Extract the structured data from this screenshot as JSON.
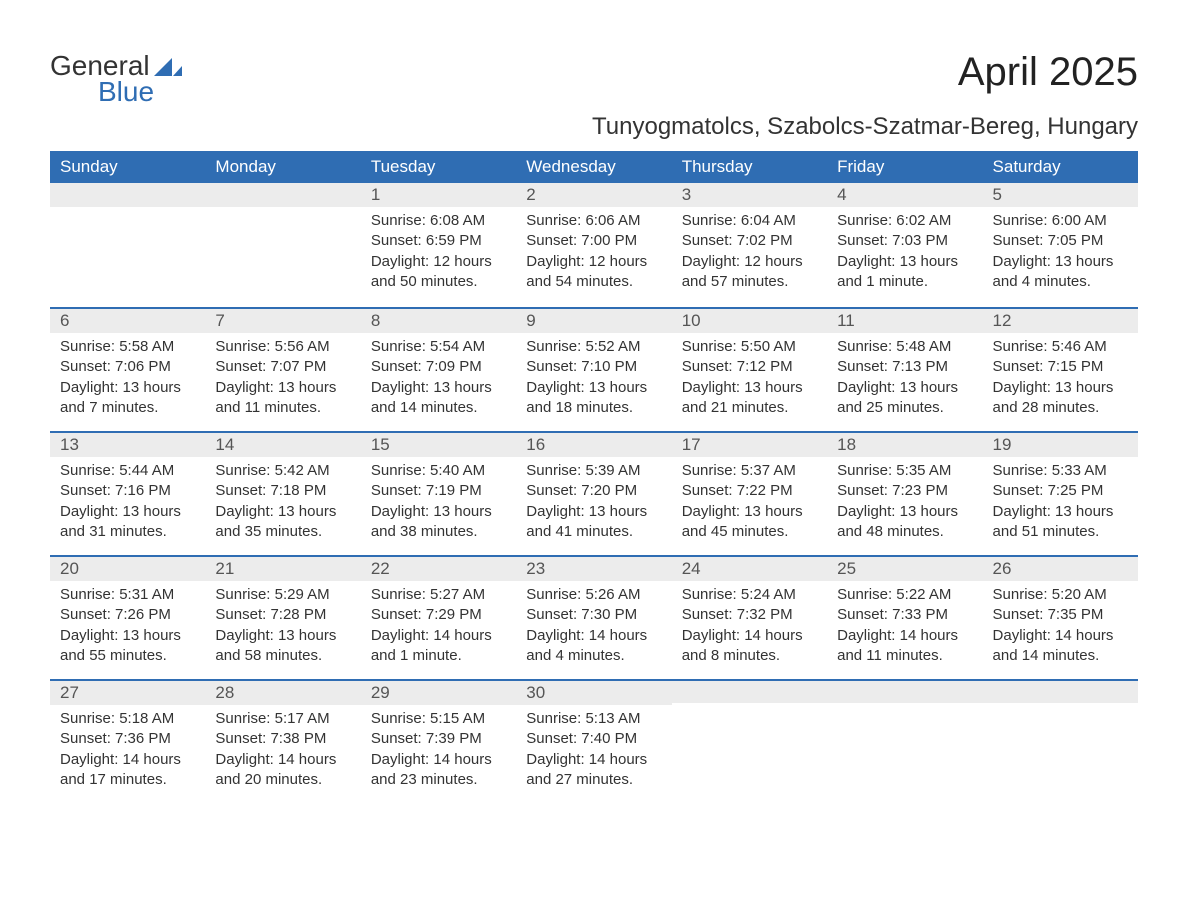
{
  "logo": {
    "text1": "General",
    "text2": "Blue",
    "mark_color": "#2f6db3"
  },
  "title": "April 2025",
  "location": "Tunyogmatolcs, Szabolcs-Szatmar-Bereg, Hungary",
  "colors": {
    "header_bg": "#2f6db3",
    "header_text": "#ffffff",
    "daynum_bg": "#ececec",
    "border_top": "#2f6db3",
    "body_text": "#333333",
    "page_bg": "#ffffff"
  },
  "day_names": [
    "Sunday",
    "Monday",
    "Tuesday",
    "Wednesday",
    "Thursday",
    "Friday",
    "Saturday"
  ],
  "weeks": [
    [
      {
        "n": "",
        "lines": []
      },
      {
        "n": "",
        "lines": []
      },
      {
        "n": "1",
        "lines": [
          "Sunrise: 6:08 AM",
          "Sunset: 6:59 PM",
          "Daylight: 12 hours and 50 minutes."
        ]
      },
      {
        "n": "2",
        "lines": [
          "Sunrise: 6:06 AM",
          "Sunset: 7:00 PM",
          "Daylight: 12 hours and 54 minutes."
        ]
      },
      {
        "n": "3",
        "lines": [
          "Sunrise: 6:04 AM",
          "Sunset: 7:02 PM",
          "Daylight: 12 hours and 57 minutes."
        ]
      },
      {
        "n": "4",
        "lines": [
          "Sunrise: 6:02 AM",
          "Sunset: 7:03 PM",
          "Daylight: 13 hours and 1 minute."
        ]
      },
      {
        "n": "5",
        "lines": [
          "Sunrise: 6:00 AM",
          "Sunset: 7:05 PM",
          "Daylight: 13 hours and 4 minutes."
        ]
      }
    ],
    [
      {
        "n": "6",
        "lines": [
          "Sunrise: 5:58 AM",
          "Sunset: 7:06 PM",
          "Daylight: 13 hours and 7 minutes."
        ]
      },
      {
        "n": "7",
        "lines": [
          "Sunrise: 5:56 AM",
          "Sunset: 7:07 PM",
          "Daylight: 13 hours and 11 minutes."
        ]
      },
      {
        "n": "8",
        "lines": [
          "Sunrise: 5:54 AM",
          "Sunset: 7:09 PM",
          "Daylight: 13 hours and 14 minutes."
        ]
      },
      {
        "n": "9",
        "lines": [
          "Sunrise: 5:52 AM",
          "Sunset: 7:10 PM",
          "Daylight: 13 hours and 18 minutes."
        ]
      },
      {
        "n": "10",
        "lines": [
          "Sunrise: 5:50 AM",
          "Sunset: 7:12 PM",
          "Daylight: 13 hours and 21 minutes."
        ]
      },
      {
        "n": "11",
        "lines": [
          "Sunrise: 5:48 AM",
          "Sunset: 7:13 PM",
          "Daylight: 13 hours and 25 minutes."
        ]
      },
      {
        "n": "12",
        "lines": [
          "Sunrise: 5:46 AM",
          "Sunset: 7:15 PM",
          "Daylight: 13 hours and 28 minutes."
        ]
      }
    ],
    [
      {
        "n": "13",
        "lines": [
          "Sunrise: 5:44 AM",
          "Sunset: 7:16 PM",
          "Daylight: 13 hours and 31 minutes."
        ]
      },
      {
        "n": "14",
        "lines": [
          "Sunrise: 5:42 AM",
          "Sunset: 7:18 PM",
          "Daylight: 13 hours and 35 minutes."
        ]
      },
      {
        "n": "15",
        "lines": [
          "Sunrise: 5:40 AM",
          "Sunset: 7:19 PM",
          "Daylight: 13 hours and 38 minutes."
        ]
      },
      {
        "n": "16",
        "lines": [
          "Sunrise: 5:39 AM",
          "Sunset: 7:20 PM",
          "Daylight: 13 hours and 41 minutes."
        ]
      },
      {
        "n": "17",
        "lines": [
          "Sunrise: 5:37 AM",
          "Sunset: 7:22 PM",
          "Daylight: 13 hours and 45 minutes."
        ]
      },
      {
        "n": "18",
        "lines": [
          "Sunrise: 5:35 AM",
          "Sunset: 7:23 PM",
          "Daylight: 13 hours and 48 minutes."
        ]
      },
      {
        "n": "19",
        "lines": [
          "Sunrise: 5:33 AM",
          "Sunset: 7:25 PM",
          "Daylight: 13 hours and 51 minutes."
        ]
      }
    ],
    [
      {
        "n": "20",
        "lines": [
          "Sunrise: 5:31 AM",
          "Sunset: 7:26 PM",
          "Daylight: 13 hours and 55 minutes."
        ]
      },
      {
        "n": "21",
        "lines": [
          "Sunrise: 5:29 AM",
          "Sunset: 7:28 PM",
          "Daylight: 13 hours and 58 minutes."
        ]
      },
      {
        "n": "22",
        "lines": [
          "Sunrise: 5:27 AM",
          "Sunset: 7:29 PM",
          "Daylight: 14 hours and 1 minute."
        ]
      },
      {
        "n": "23",
        "lines": [
          "Sunrise: 5:26 AM",
          "Sunset: 7:30 PM",
          "Daylight: 14 hours and 4 minutes."
        ]
      },
      {
        "n": "24",
        "lines": [
          "Sunrise: 5:24 AM",
          "Sunset: 7:32 PM",
          "Daylight: 14 hours and 8 minutes."
        ]
      },
      {
        "n": "25",
        "lines": [
          "Sunrise: 5:22 AM",
          "Sunset: 7:33 PM",
          "Daylight: 14 hours and 11 minutes."
        ]
      },
      {
        "n": "26",
        "lines": [
          "Sunrise: 5:20 AM",
          "Sunset: 7:35 PM",
          "Daylight: 14 hours and 14 minutes."
        ]
      }
    ],
    [
      {
        "n": "27",
        "lines": [
          "Sunrise: 5:18 AM",
          "Sunset: 7:36 PM",
          "Daylight: 14 hours and 17 minutes."
        ]
      },
      {
        "n": "28",
        "lines": [
          "Sunrise: 5:17 AM",
          "Sunset: 7:38 PM",
          "Daylight: 14 hours and 20 minutes."
        ]
      },
      {
        "n": "29",
        "lines": [
          "Sunrise: 5:15 AM",
          "Sunset: 7:39 PM",
          "Daylight: 14 hours and 23 minutes."
        ]
      },
      {
        "n": "30",
        "lines": [
          "Sunrise: 5:13 AM",
          "Sunset: 7:40 PM",
          "Daylight: 14 hours and 27 minutes."
        ]
      },
      {
        "n": "",
        "lines": []
      },
      {
        "n": "",
        "lines": []
      },
      {
        "n": "",
        "lines": []
      }
    ]
  ]
}
